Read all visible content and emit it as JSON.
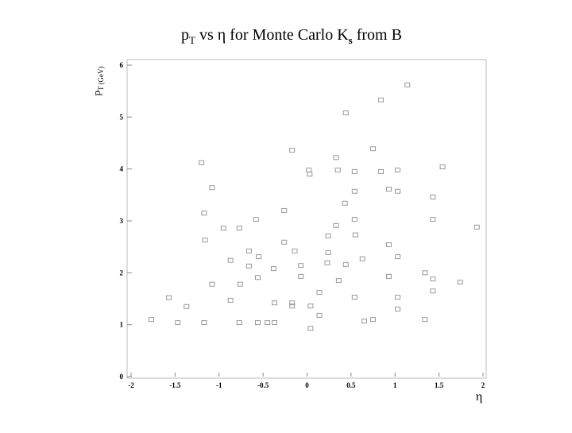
{
  "chart_data": {
    "type": "scatter",
    "title": [
      "p",
      "T",
      " vs η for Monte Carlo K",
      "s",
      " from B"
    ],
    "y_label": [
      "p",
      "T",
      " (GeV)"
    ],
    "x_label": "η",
    "xlim": [
      -2,
      2
    ],
    "xticks": [
      -2,
      -1.5,
      -1,
      -0.5,
      0,
      0.5,
      1,
      1.5,
      2
    ],
    "ylim": [
      0,
      6
    ],
    "yticks": [
      0,
      1,
      2,
      3,
      4,
      5,
      6
    ],
    "color": "#999999",
    "x": [
      -1.77,
      -1.57,
      -1.47,
      -1.37,
      -1.2,
      -1.17,
      -1.17,
      -1.16,
      -1.08,
      -1.08,
      -0.95,
      -0.87,
      -0.87,
      -0.77,
      -0.76,
      -0.77,
      -0.66,
      -0.66,
      -0.58,
      -0.56,
      -0.56,
      -0.55,
      -0.45,
      -0.37,
      -0.38,
      -0.37,
      -0.26,
      -0.26,
      -0.17,
      -0.17,
      -0.17,
      -0.14,
      -0.07,
      -0.07,
      0.02,
      0.03,
      0.04,
      0.04,
      0.14,
      0.14,
      0.23,
      0.24,
      0.24,
      0.33,
      0.33,
      0.35,
      0.36,
      0.44,
      0.43,
      0.44,
      0.54,
      0.54,
      0.54,
      0.55,
      0.54,
      0.63,
      0.65,
      0.75,
      0.75,
      0.84,
      0.84,
      0.93,
      0.93,
      0.93,
      1.03,
      1.03,
      1.03,
      1.03,
      1.03,
      1.14,
      1.34,
      1.34,
      1.43,
      1.43,
      1.43,
      1.43,
      1.54,
      1.74,
      1.93
    ],
    "values": [
      1.1,
      1.52,
      1.04,
      1.35,
      4.12,
      1.04,
      3.15,
      2.63,
      3.64,
      1.78,
      2.86,
      2.24,
      1.47,
      2.86,
      1.78,
      1.04,
      2.42,
      2.13,
      3.03,
      1.04,
      1.91,
      2.31,
      1.04,
      1.04,
      2.08,
      1.42,
      3.2,
      2.59,
      4.36,
      1.42,
      1.36,
      2.42,
      1.93,
      2.14,
      3.98,
      3.9,
      0.93,
      1.36,
      1.62,
      1.18,
      2.19,
      2.71,
      2.39,
      4.22,
      2.91,
      3.98,
      1.85,
      5.08,
      3.34,
      2.16,
      3.95,
      3.57,
      3.03,
      2.73,
      1.53,
      2.27,
      1.07,
      4.39,
      1.1,
      5.33,
      3.95,
      3.61,
      2.54,
      1.93,
      3.98,
      3.57,
      2.31,
      1.53,
      1.3,
      5.62,
      1.1,
      2.0,
      3.46,
      3.03,
      1.88,
      1.65,
      4.04,
      1.82,
      2.88
    ]
  }
}
